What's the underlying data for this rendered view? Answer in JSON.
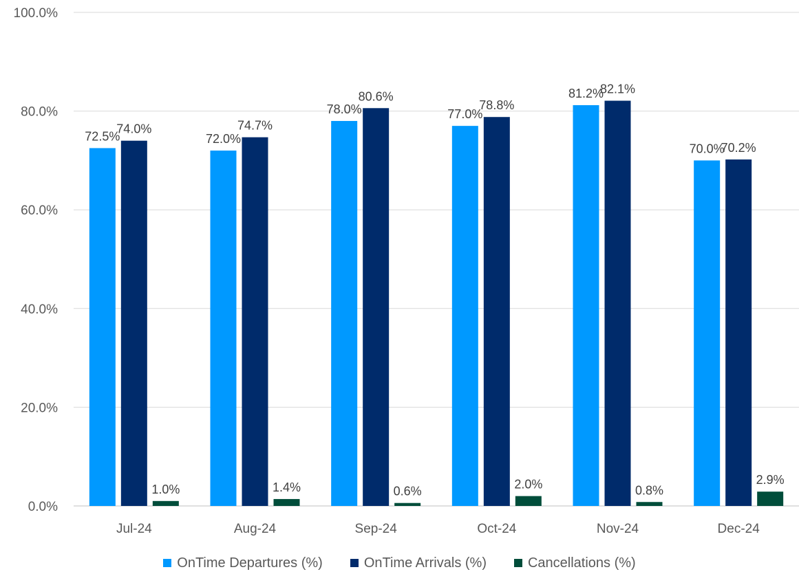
{
  "chart_data": {
    "type": "bar",
    "categories": [
      "Jul-24",
      "Aug-24",
      "Sep-24",
      "Oct-24",
      "Nov-24",
      "Dec-24"
    ],
    "series": [
      {
        "name": "OnTime Departures (%)",
        "color": "#0099FF",
        "values": [
          72.5,
          72.0,
          78.0,
          77.0,
          81.2,
          70.0
        ],
        "labels": [
          "72.5%",
          "72.0%",
          "78.0%",
          "77.0%",
          "81.2%",
          "70.0%"
        ]
      },
      {
        "name": "OnTime Arrivals (%)",
        "color": "#002B6B",
        "values": [
          74.0,
          74.7,
          80.6,
          78.8,
          82.1,
          70.2
        ],
        "labels": [
          "74.0%",
          "74.7%",
          "80.6%",
          "78.8%",
          "82.1%",
          "70.2%"
        ]
      },
      {
        "name": "Cancellations (%)",
        "color": "#004D3A",
        "values": [
          1.0,
          1.4,
          0.6,
          2.0,
          0.8,
          2.9
        ],
        "labels": [
          "1.0%",
          "1.4%",
          "0.6%",
          "2.0%",
          "0.8%",
          "2.9%"
        ]
      }
    ],
    "yticks": [
      "0.0%",
      "20.0%",
      "40.0%",
      "60.0%",
      "80.0%",
      "100.0%"
    ],
    "ylim": [
      0,
      100
    ],
    "grid": true,
    "legend_position": "bottom",
    "title": "",
    "xlabel": "",
    "ylabel": ""
  }
}
